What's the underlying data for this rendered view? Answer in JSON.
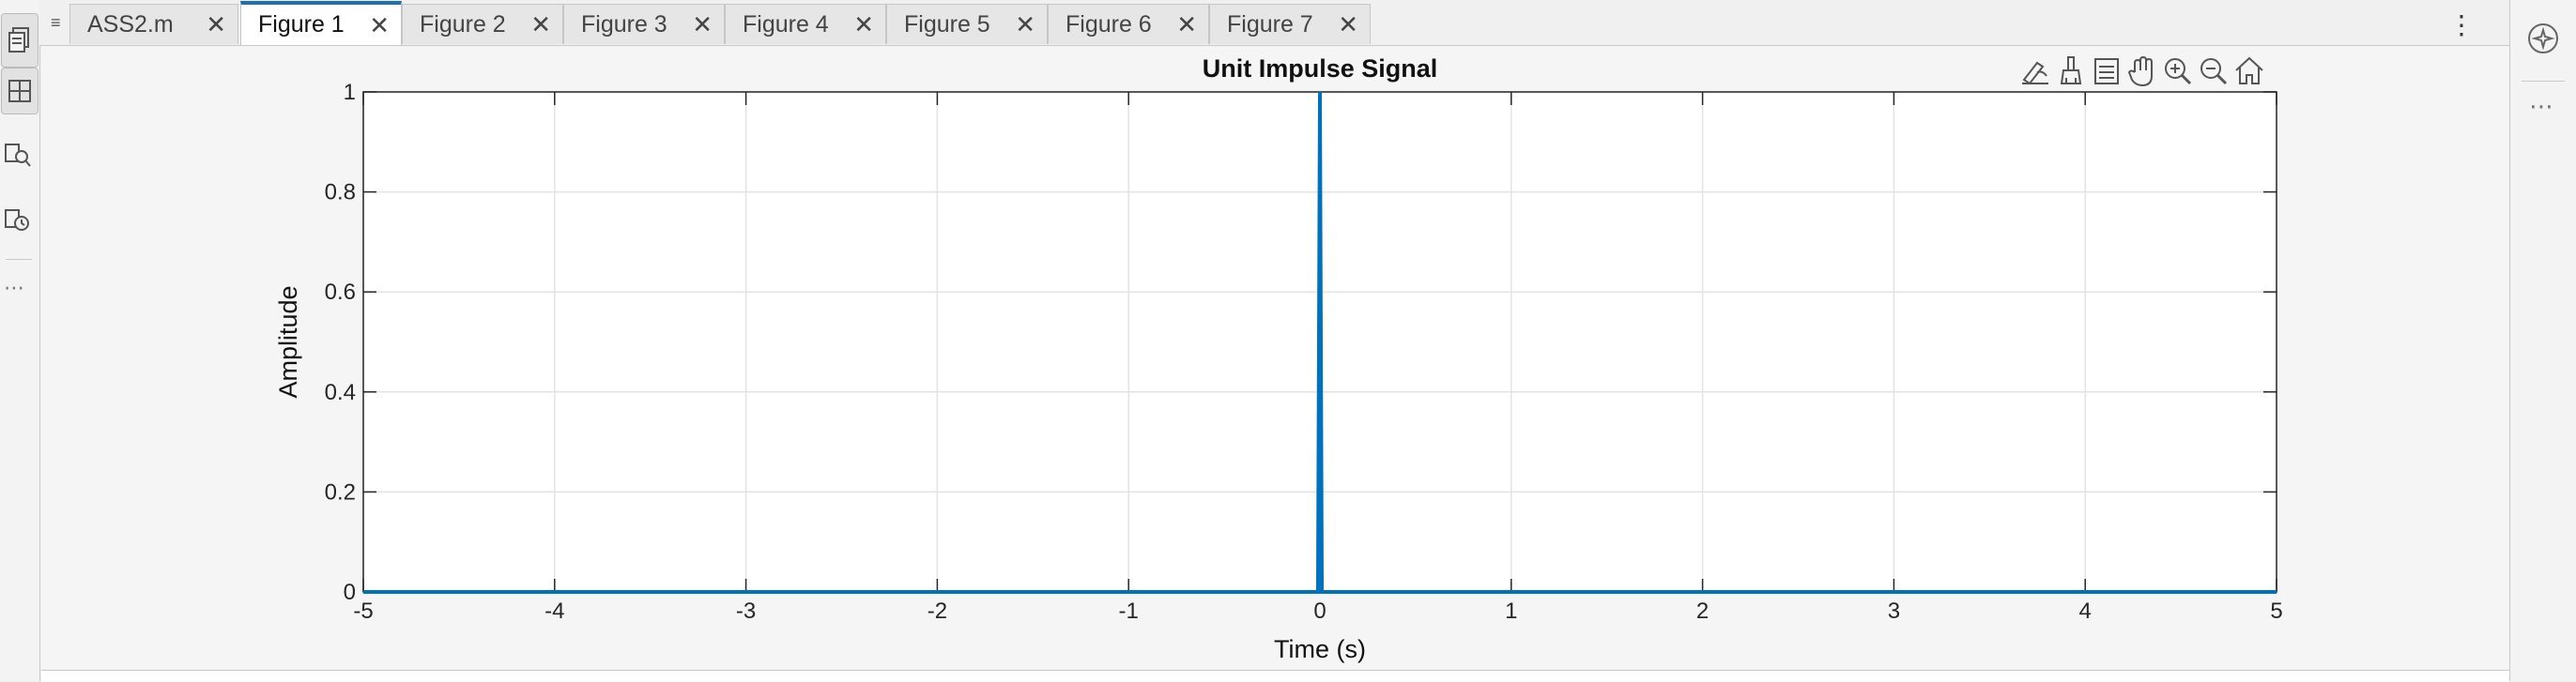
{
  "tabs": [
    {
      "label": "ASS2.m",
      "active": false
    },
    {
      "label": "Figure 1",
      "active": true
    },
    {
      "label": "Figure 2",
      "active": false
    },
    {
      "label": "Figure 3",
      "active": false
    },
    {
      "label": "Figure 4",
      "active": false
    },
    {
      "label": "Figure 5",
      "active": false
    },
    {
      "label": "Figure 6",
      "active": false
    },
    {
      "label": "Figure 7",
      "active": false
    }
  ],
  "toolbar": {
    "icons": [
      "data-tips-icon",
      "brush-icon",
      "legend-icon",
      "pan-hand-icon",
      "zoom-in-icon",
      "zoom-out-icon",
      "home-icon"
    ]
  },
  "left_rail": {
    "icons": [
      "files-icon",
      "layout-icon",
      "find-icon",
      "history-icon",
      "more-icon"
    ]
  },
  "right_rail": {
    "icons": [
      "copilot-icon",
      "more-icon"
    ]
  },
  "colors": {
    "accent": "#1e6fb5",
    "signal": "#0072BD",
    "grid": "#e3e3e3"
  },
  "chart_data": {
    "type": "line",
    "title": "Unit Impulse Signal",
    "xlabel": "Time (s)",
    "ylabel": "Amplitude",
    "xlim": [
      -5,
      5
    ],
    "ylim": [
      0,
      1
    ],
    "xticks": [
      "-5",
      "-4",
      "-3",
      "-2",
      "-1",
      "0",
      "1",
      "2",
      "3",
      "4",
      "5"
    ],
    "yticks": [
      "0",
      "0.2",
      "0.4",
      "0.6",
      "0.8",
      "1"
    ],
    "grid": true,
    "series": [
      {
        "x": [
          -5,
          -0.01,
          0,
          0.01,
          5
        ],
        "y": [
          0,
          0,
          1,
          0,
          0
        ]
      }
    ]
  }
}
